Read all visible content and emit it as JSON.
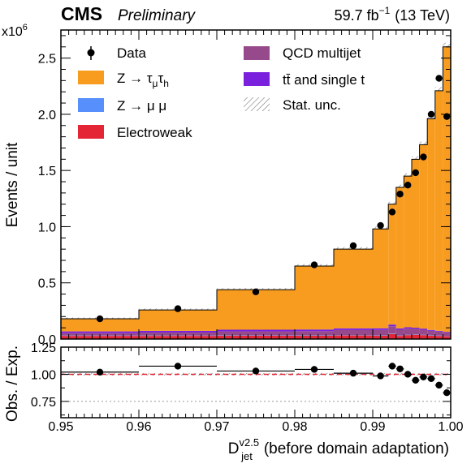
{
  "header": {
    "experiment": "CMS",
    "status": "Preliminary",
    "lumi": "59.7 fb",
    "lumi_exponent": "−1",
    "energy": "(13 TeV)"
  },
  "chart_data": {
    "type": "histogram-stack-with-ratio",
    "xlabel": "D",
    "xlabel_sup": "v2.5",
    "xlabel_sub": "jet",
    "xlabel_suffix": "(before domain adaptation)",
    "ylabel": "Events / unit",
    "y_multiplier": "x10",
    "y_multiplier_exp": "6",
    "ratio_ylabel": "Obs. / Exp.",
    "xlim": [
      0.95,
      1.0
    ],
    "ylim": [
      0,
      2.75
    ],
    "ratio_ylim": [
      0.6,
      1.25
    ],
    "x_ticks": [
      "0.95",
      "0.96",
      "0.97",
      "0.98",
      "0.99",
      "1.00"
    ],
    "x_tick_values": [
      0.95,
      0.96,
      0.97,
      0.98,
      0.99,
      1.0
    ],
    "y_ticks": [
      "0.0",
      "0.5",
      "1.0",
      "1.5",
      "2.0",
      "2.5"
    ],
    "y_tick_values": [
      0,
      0.5,
      1.0,
      1.5,
      2.0,
      2.5
    ],
    "ratio_ticks": [
      "0.75",
      "1.00",
      "1.25"
    ],
    "ratio_tick_values": [
      0.75,
      1.0,
      1.25
    ],
    "bin_edges": [
      0.95,
      0.96,
      0.97,
      0.98,
      0.985,
      0.99,
      0.992,
      0.993,
      0.994,
      0.995,
      0.996,
      0.997,
      0.998,
      0.999,
      1.0
    ],
    "series": [
      {
        "name": "Electroweak",
        "legend_key": "ew",
        "color": "#e42536",
        "values": [
          0.028,
          0.028,
          0.03,
          0.03,
          0.032,
          0.03,
          0.045,
          0.028,
          0.035,
          0.038,
          0.035,
          0.03,
          0.028,
          0.025
        ]
      },
      {
        "name": "Z → μ μ",
        "legend_key": "zmm",
        "color": "#5790fc",
        "values": [
          0.003,
          0.003,
          0.003,
          0.003,
          0.003,
          0.003,
          0.004,
          0.003,
          0.003,
          0.003,
          0.003,
          0.003,
          0.003,
          0.003
        ]
      },
      {
        "name": "QCD multijet",
        "legend_key": "qcd",
        "color": "#964a8b",
        "values": [
          0.022,
          0.027,
          0.035,
          0.037,
          0.045,
          0.048,
          0.065,
          0.052,
          0.055,
          0.05,
          0.045,
          0.04,
          0.035,
          0.03
        ]
      },
      {
        "name": "tt̄ and single t",
        "legend_key": "tt",
        "color": "#7a21dd",
        "values": [
          0.015,
          0.015,
          0.015,
          0.015,
          0.015,
          0.015,
          0.015,
          0.012,
          0.012,
          0.01,
          0.01,
          0.008,
          0.007,
          0.006
        ]
      },
      {
        "name": "Z → τμτh",
        "legend_key": "ztt",
        "color": "#f89c20",
        "values": [
          0.112,
          0.186,
          0.356,
          0.565,
          0.705,
          0.884,
          1.071,
          1.255,
          1.345,
          1.499,
          1.637,
          1.879,
          2.137,
          2.536
        ]
      }
    ],
    "data": {
      "name": "Data",
      "x": [
        0.955,
        0.965,
        0.975,
        0.9825,
        0.9875,
        0.991,
        0.9925,
        0.9935,
        0.9945,
        0.9955,
        0.9965,
        0.9975,
        0.9985,
        0.9995
      ],
      "y": [
        0.18,
        0.27,
        0.42,
        0.66,
        0.83,
        1.01,
        1.13,
        1.29,
        1.37,
        1.48,
        1.62,
        2.0,
        2.32,
        1.98
      ]
    },
    "ratio": {
      "x": [
        0.955,
        0.965,
        0.975,
        0.9825,
        0.9875,
        0.991,
        0.9925,
        0.9935,
        0.9945,
        0.9955,
        0.9965,
        0.9975,
        0.9985,
        0.9995
      ],
      "y": [
        1.02,
        1.075,
        1.03,
        1.045,
        1.01,
        0.985,
        1.075,
        1.05,
        1.0,
        0.945,
        0.975,
        0.96,
        0.9,
        0.83
      ]
    }
  },
  "legend": {
    "data": "Data",
    "ztt_main": "Z → τ",
    "ztt_sub1": "μ",
    "ztt_mid": "τ",
    "ztt_sub2": "h",
    "zmm": "Z → μ μ",
    "ew": "Electroweak",
    "qcd": "QCD multijet",
    "tt": "tt̄ and single t",
    "unc": "Stat. unc."
  },
  "colors": {
    "ztt": "#f89c20",
    "zmm": "#5790fc",
    "ew": "#e42536",
    "qcd": "#964a8b",
    "tt": "#7a21dd",
    "reference_line": "#e42536"
  }
}
